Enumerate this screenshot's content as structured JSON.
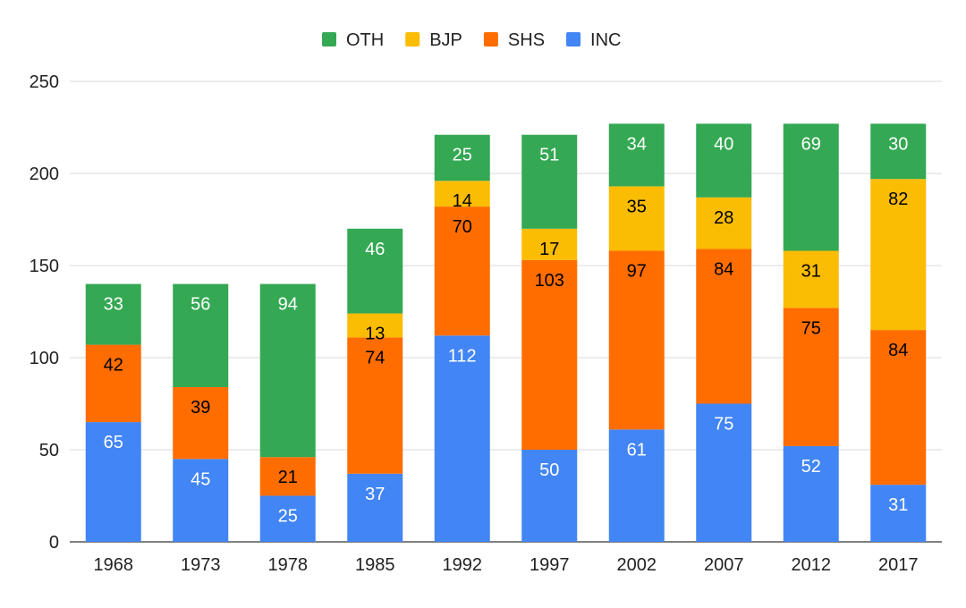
{
  "chart_data": {
    "type": "bar",
    "stacked": true,
    "categories": [
      "1968",
      "1973",
      "1978",
      "1985",
      "1992",
      "1997",
      "2002",
      "2007",
      "2012",
      "2017"
    ],
    "series": [
      {
        "name": "INC",
        "color": "#4285f4",
        "label_color": "#ffffff",
        "values": [
          65,
          45,
          25,
          37,
          112,
          50,
          61,
          75,
          52,
          31
        ]
      },
      {
        "name": "SHS",
        "color": "#ff6d01",
        "label_color": "#000000",
        "values": [
          42,
          39,
          21,
          74,
          70,
          103,
          97,
          84,
          75,
          84
        ]
      },
      {
        "name": "BJP",
        "color": "#fbbc04",
        "label_color": "#000000",
        "values": [
          0,
          0,
          0,
          13,
          14,
          17,
          35,
          28,
          31,
          82
        ]
      },
      {
        "name": "OTH",
        "color": "#34a853",
        "label_color": "#ffffff",
        "values": [
          33,
          56,
          94,
          46,
          25,
          51,
          34,
          40,
          69,
          30
        ]
      }
    ],
    "legend_order": [
      "OTH",
      "BJP",
      "SHS",
      "INC"
    ],
    "legend_position": "top",
    "ylim": [
      0,
      250
    ],
    "yticks": [
      0,
      50,
      100,
      150,
      200,
      250
    ],
    "grid": true,
    "title": "",
    "xlabel": "",
    "ylabel": ""
  }
}
